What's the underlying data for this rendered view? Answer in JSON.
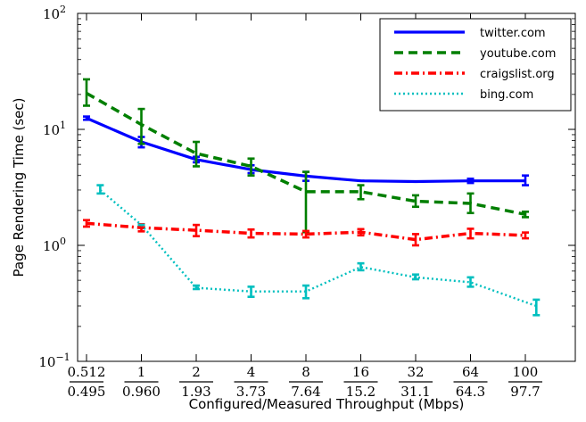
{
  "chart_data": {
    "type": "line",
    "xlabel": "Configured/Measured Throughput (Mbps)",
    "ylabel": "Page Rendering Time (sec)",
    "yscale": "log",
    "ylim": [
      0.1,
      100
    ],
    "y_ticks": [
      {
        "base": "10",
        "exp": "−1",
        "value": 0.1
      },
      {
        "base": "10",
        "exp": "0",
        "value": 1
      },
      {
        "base": "10",
        "exp": "1",
        "value": 10
      },
      {
        "base": "10",
        "exp": "2",
        "value": 100
      }
    ],
    "categories": [
      {
        "configured": "0.512",
        "measured": "0.495"
      },
      {
        "configured": "1",
        "measured": "0.960"
      },
      {
        "configured": "2",
        "measured": "1.93"
      },
      {
        "configured": "4",
        "measured": "3.73"
      },
      {
        "configured": "8",
        "measured": "7.64"
      },
      {
        "configured": "16",
        "measured": "15.2"
      },
      {
        "configured": "32",
        "measured": "31.1"
      },
      {
        "configured": "64",
        "measured": "64.3"
      },
      {
        "configured": "100",
        "measured": "97.7"
      }
    ],
    "legend_position": "top-right",
    "grid": false,
    "series": [
      {
        "name": "twitter.com",
        "color": "#0000ff",
        "style": "solid",
        "x_index": [
          0,
          1,
          2,
          3,
          4,
          5,
          6,
          7,
          8
        ],
        "values": [
          12.5,
          7.8,
          5.5,
          4.5,
          3.95,
          3.6,
          3.55,
          3.6,
          3.6
        ],
        "err_low": [
          12.1,
          7.0,
          5.2,
          4.2,
          3.6,
          3.6,
          3.55,
          3.45,
          3.3
        ],
        "err_high": [
          12.9,
          8.6,
          5.8,
          4.9,
          4.3,
          3.6,
          3.55,
          3.75,
          4.0
        ]
      },
      {
        "name": "youtube.com",
        "color": "#007f00",
        "style": "dashed",
        "x_index": [
          0,
          1,
          2,
          3,
          4,
          5,
          6,
          7,
          8
        ],
        "values": [
          20.5,
          11.0,
          6.2,
          4.8,
          2.9,
          2.9,
          2.4,
          2.3,
          1.85
        ],
        "err_low": [
          16.0,
          7.5,
          4.8,
          4.0,
          1.3,
          2.5,
          2.15,
          1.9,
          1.75
        ],
        "err_high": [
          27.0,
          15.0,
          7.8,
          5.6,
          4.3,
          3.3,
          2.7,
          2.8,
          1.95
        ]
      },
      {
        "name": "craigslist.org",
        "color": "#ff0000",
        "style": "dashdot",
        "x_index": [
          0,
          1,
          2,
          3,
          4,
          5,
          6,
          7,
          8
        ],
        "values": [
          1.55,
          1.42,
          1.35,
          1.27,
          1.25,
          1.3,
          1.12,
          1.27,
          1.22
        ],
        "err_low": [
          1.45,
          1.32,
          1.2,
          1.17,
          1.17,
          1.22,
          1.0,
          1.15,
          1.15
        ],
        "err_high": [
          1.65,
          1.52,
          1.5,
          1.37,
          1.33,
          1.38,
          1.25,
          1.39,
          1.29
        ]
      },
      {
        "name": "bing.com",
        "color": "#00bfbf",
        "style": "dotted",
        "x_index": [
          0.25,
          1.0,
          2.0,
          3.0,
          4.0,
          5.0,
          6.0,
          7.0,
          8.2
        ],
        "values": [
          3.0,
          1.5,
          0.43,
          0.4,
          0.4,
          0.65,
          0.53,
          0.48,
          0.3
        ],
        "err_low": [
          2.8,
          1.5,
          0.42,
          0.36,
          0.35,
          0.61,
          0.51,
          0.44,
          0.25
        ],
        "err_high": [
          3.3,
          1.5,
          0.45,
          0.44,
          0.45,
          0.7,
          0.56,
          0.53,
          0.34
        ]
      }
    ]
  }
}
